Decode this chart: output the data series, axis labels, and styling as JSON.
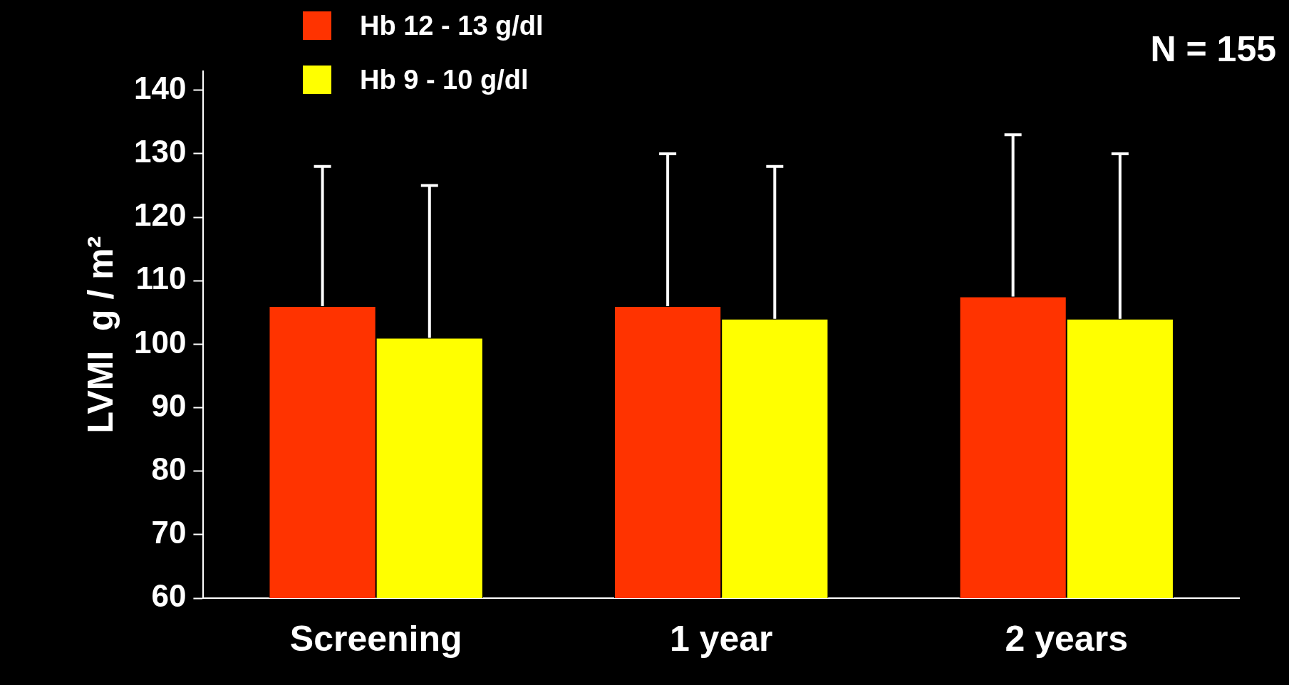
{
  "chart_data": {
    "type": "bar",
    "ylabel": "LVMI  g / m²",
    "categories": [
      "Screening",
      "1 year",
      "2 years"
    ],
    "series": [
      {
        "name": "Hb 12 - 13 g/dl",
        "color": "#ff3300",
        "values": [
          106,
          106,
          107.5
        ],
        "errors": [
          [
            106,
            128
          ],
          [
            106,
            130
          ],
          [
            107.5,
            133
          ]
        ]
      },
      {
        "name": "Hb 9 - 10 g/dl",
        "color": "#ffff00",
        "values": [
          101,
          104,
          104
        ],
        "errors": [
          [
            101,
            125
          ],
          [
            104,
            128
          ],
          [
            104,
            130
          ]
        ]
      }
    ],
    "ylim": [
      60,
      143
    ],
    "yticks": [
      60,
      70,
      80,
      90,
      100,
      110,
      120,
      130,
      140
    ],
    "grid": false,
    "legend": "top left",
    "annotations": [
      "N = 155"
    ]
  }
}
